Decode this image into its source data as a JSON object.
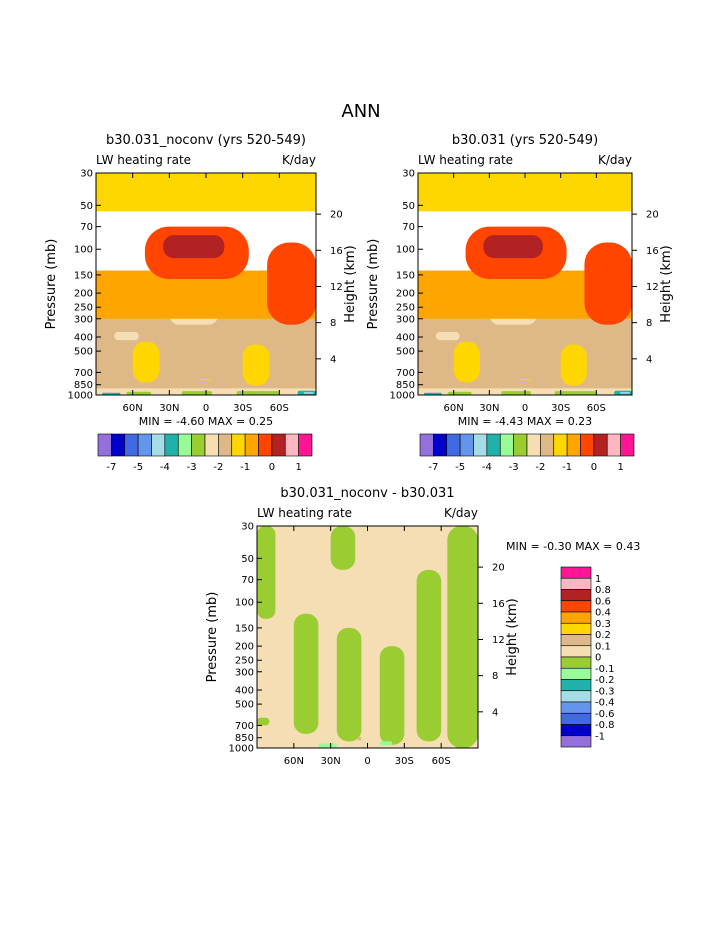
{
  "page_title": "ANN",
  "palette": {
    "main": [
      "#9370db",
      "#0000cd",
      "#4169e1",
      "#6495ed",
      "#a6dce6",
      "#20b2aa",
      "#98fb98",
      "#9acd32",
      "#f5deb3",
      "#deb887",
      "#ffd700",
      "#ffa500",
      "#ff4500",
      "#b22222",
      "#ffb6c1",
      "#ff1493"
    ],
    "diff": [
      "#9370db",
      "#0000cd",
      "#4169e1",
      "#6495ed",
      "#a6dce6",
      "#20b2aa",
      "#98fb98",
      "#9acd32",
      "#f5deb3",
      "#deb887",
      "#ffd700",
      "#ffa500",
      "#ff4500",
      "#b22222",
      "#ffb6c1",
      "#ff1493"
    ]
  },
  "chart_data": [
    {
      "type": "heatmap",
      "title": "b30.031_noconv (yrs 520-549)",
      "subtitle_left": "LW heating rate",
      "subtitle_right": "K/day",
      "ylabel": "Pressure (mb)",
      "ylabel_right": "Height (km)",
      "xlabel": "",
      "x_ticks": [
        "60N",
        "30N",
        "0",
        "30S",
        "60S"
      ],
      "x_values": [
        60,
        30,
        0,
        -30,
        -60
      ],
      "xlim": [
        90,
        -90
      ],
      "y_ticks": [
        "1000",
        "850",
        "700",
        "500",
        "400",
        "300",
        "250",
        "200",
        "150",
        "100",
        "70",
        "50",
        "30"
      ],
      "y_values": [
        1000,
        850,
        700,
        500,
        400,
        300,
        250,
        200,
        150,
        100,
        70,
        50,
        30
      ],
      "ylim": [
        1000,
        30
      ],
      "y_scale": "log",
      "height_ticks": [
        "4",
        "8",
        "12",
        "16",
        "20"
      ],
      "height_values": [
        4,
        8,
        12,
        16,
        20
      ],
      "min_label": "MIN =",
      "min_value": "-4.60",
      "max_label": "MAX =",
      "max_value": "0.25",
      "colorbar_orientation": "horizontal",
      "colorbar_labels": [
        "-7",
        "-5",
        "-4",
        "-3",
        "-2",
        "-1",
        "0",
        "1"
      ],
      "colorbar_levels": [
        -7,
        -6,
        -5,
        -4.5,
        -4,
        -3.5,
        -3,
        -2.5,
        -2,
        -1.5,
        -1,
        -0.5,
        0,
        0.5,
        1
      ],
      "fields": [
        {
          "level": 9,
          "lat": [
            -90,
            90
          ],
          "p": [
            950,
            260
          ]
        },
        {
          "level": 8,
          "lat": [
            30,
            -10
          ],
          "p": [
            330,
            235
          ]
        },
        {
          "level": 8,
          "lat": [
            75,
            55
          ],
          "p": [
            420,
            370
          ]
        },
        {
          "level": 10,
          "lat": [
            60,
            38
          ],
          "p": [
            820,
            430
          ]
        },
        {
          "level": 10,
          "lat": [
            -30,
            -52
          ],
          "p": [
            860,
            450
          ]
        },
        {
          "level": 10,
          "lat": [
            5,
            -5
          ],
          "p": [
            790,
            780
          ]
        },
        {
          "level": 8,
          "lat": [
            90,
            -90
          ],
          "p": [
            1000,
            900
          ]
        },
        {
          "level": 7,
          "lat": [
            65,
            45
          ],
          "p": [
            1000,
            950
          ]
        },
        {
          "level": 7,
          "lat": [
            20,
            -5
          ],
          "p": [
            1000,
            940
          ]
        },
        {
          "level": 7,
          "lat": [
            -25,
            -60
          ],
          "p": [
            1000,
            940
          ]
        },
        {
          "level": 5,
          "lat": [
            85,
            70
          ],
          "p": [
            1000,
            965
          ]
        },
        {
          "level": 5,
          "lat": [
            -75,
            -90
          ],
          "p": [
            1000,
            935
          ]
        },
        {
          "level": 4,
          "lat": [
            -80,
            -88
          ],
          "p": [
            980,
            955
          ]
        },
        {
          "level": 11,
          "lat": [
            90,
            -90
          ],
          "p": [
            300,
            140
          ]
        },
        {
          "level": 12,
          "lat": [
            -50,
            -90
          ],
          "p": [
            330,
            90
          ]
        },
        {
          "level": 12,
          "lat": [
            50,
            -35
          ],
          "p": [
            160,
            70
          ]
        },
        {
          "level": 13,
          "lat": [
            35,
            -15
          ],
          "p": [
            115,
            80
          ]
        },
        {
          "level": 10,
          "lat": [
            90,
            -90
          ],
          "p": [
            55,
            30
          ]
        }
      ]
    },
    {
      "type": "heatmap",
      "title": "b30.031 (yrs 520-549)",
      "subtitle_left": "LW heating rate",
      "subtitle_right": "K/day",
      "ylabel": "Pressure (mb)",
      "ylabel_right": "Height (km)",
      "xlabel": "",
      "x_ticks": [
        "60N",
        "30N",
        "0",
        "30S",
        "60S"
      ],
      "x_values": [
        60,
        30,
        0,
        -30,
        -60
      ],
      "xlim": [
        90,
        -90
      ],
      "y_ticks": [
        "1000",
        "850",
        "700",
        "500",
        "400",
        "300",
        "250",
        "200",
        "150",
        "100",
        "70",
        "50",
        "30"
      ],
      "y_values": [
        1000,
        850,
        700,
        500,
        400,
        300,
        250,
        200,
        150,
        100,
        70,
        50,
        30
      ],
      "ylim": [
        1000,
        30
      ],
      "y_scale": "log",
      "height_ticks": [
        "4",
        "8",
        "12",
        "16",
        "20"
      ],
      "height_values": [
        4,
        8,
        12,
        16,
        20
      ],
      "min_label": "MIN =",
      "min_value": "-4.43",
      "max_label": "MAX =",
      "max_value": "0.23",
      "colorbar_orientation": "horizontal",
      "colorbar_labels": [
        "-7",
        "-5",
        "-4",
        "-3",
        "-2",
        "-1",
        "0",
        "1"
      ],
      "colorbar_levels": [
        -7,
        -6,
        -5,
        -4.5,
        -4,
        -3.5,
        -3,
        -2.5,
        -2,
        -1.5,
        -1,
        -0.5,
        0,
        0.5,
        1
      ],
      "fields": [
        {
          "level": 9,
          "lat": [
            -90,
            90
          ],
          "p": [
            950,
            260
          ]
        },
        {
          "level": 8,
          "lat": [
            30,
            -10
          ],
          "p": [
            330,
            235
          ]
        },
        {
          "level": 8,
          "lat": [
            75,
            55
          ],
          "p": [
            420,
            370
          ]
        },
        {
          "level": 10,
          "lat": [
            60,
            38
          ],
          "p": [
            820,
            430
          ]
        },
        {
          "level": 10,
          "lat": [
            -30,
            -52
          ],
          "p": [
            860,
            450
          ]
        },
        {
          "level": 10,
          "lat": [
            5,
            -5
          ],
          "p": [
            790,
            780
          ]
        },
        {
          "level": 8,
          "lat": [
            90,
            -90
          ],
          "p": [
            1000,
            900
          ]
        },
        {
          "level": 7,
          "lat": [
            65,
            45
          ],
          "p": [
            1000,
            950
          ]
        },
        {
          "level": 7,
          "lat": [
            20,
            -5
          ],
          "p": [
            1000,
            940
          ]
        },
        {
          "level": 7,
          "lat": [
            -25,
            -60
          ],
          "p": [
            1000,
            940
          ]
        },
        {
          "level": 5,
          "lat": [
            85,
            70
          ],
          "p": [
            1000,
            965
          ]
        },
        {
          "level": 5,
          "lat": [
            -75,
            -90
          ],
          "p": [
            1000,
            935
          ]
        },
        {
          "level": 4,
          "lat": [
            -80,
            -88
          ],
          "p": [
            980,
            955
          ]
        },
        {
          "level": 11,
          "lat": [
            90,
            -90
          ],
          "p": [
            300,
            140
          ]
        },
        {
          "level": 12,
          "lat": [
            -50,
            -90
          ],
          "p": [
            330,
            90
          ]
        },
        {
          "level": 12,
          "lat": [
            50,
            -35
          ],
          "p": [
            160,
            70
          ]
        },
        {
          "level": 13,
          "lat": [
            35,
            -15
          ],
          "p": [
            115,
            80
          ]
        },
        {
          "level": 10,
          "lat": [
            90,
            -90
          ],
          "p": [
            55,
            30
          ]
        }
      ]
    },
    {
      "type": "heatmap",
      "title": "b30.031_noconv - b30.031",
      "subtitle_left": "LW heating rate",
      "subtitle_right": "K/day",
      "ylabel": "Pressure (mb)",
      "ylabel_right": "Height (km)",
      "xlabel": "",
      "x_ticks": [
        "60N",
        "30N",
        "0",
        "30S",
        "60S"
      ],
      "x_values": [
        60,
        30,
        0,
        -30,
        -60
      ],
      "xlim": [
        90,
        -90
      ],
      "y_ticks": [
        "1000",
        "850",
        "700",
        "500",
        "400",
        "300",
        "250",
        "200",
        "150",
        "100",
        "70",
        "50",
        "30"
      ],
      "y_values": [
        1000,
        850,
        700,
        500,
        400,
        300,
        250,
        200,
        150,
        100,
        70,
        50,
        30
      ],
      "ylim": [
        1000,
        30
      ],
      "y_scale": "log",
      "height_ticks": [
        "4",
        "8",
        "12",
        "16",
        "20"
      ],
      "height_values": [
        4,
        8,
        12,
        16,
        20
      ],
      "min_label": "MIN =",
      "min_value": "-0.30",
      "max_label": "MAX =",
      "max_value": "0.43",
      "colorbar_orientation": "vertical",
      "colorbar_labels": [
        "1",
        "0.8",
        "0.6",
        "0.4",
        "0.3",
        "0.2",
        "0.1",
        "0",
        "-0.1",
        "-0.2",
        "-0.3",
        "-0.4",
        "-0.6",
        "-0.8",
        "-1"
      ],
      "colorbar_levels": [
        -1,
        -0.8,
        -0.6,
        -0.4,
        -0.3,
        -0.2,
        -0.1,
        0,
        0.1,
        0.2,
        0.3,
        0.4,
        0.6,
        0.8,
        1
      ],
      "fields": [
        {
          "level": 8,
          "lat": [
            90,
            -90
          ],
          "p": [
            1000,
            30
          ]
        },
        {
          "level": 7,
          "lat": [
            60,
            40
          ],
          "p": [
            800,
            120
          ]
        },
        {
          "level": 7,
          "lat": [
            25,
            5
          ],
          "p": [
            900,
            150
          ]
        },
        {
          "level": 7,
          "lat": [
            -10,
            -30
          ],
          "p": [
            950,
            200
          ]
        },
        {
          "level": 7,
          "lat": [
            -40,
            -60
          ],
          "p": [
            900,
            60
          ]
        },
        {
          "level": 7,
          "lat": [
            -65,
            -90
          ],
          "p": [
            1000,
            30
          ]
        },
        {
          "level": 7,
          "lat": [
            90,
            75
          ],
          "p": [
            130,
            30
          ]
        },
        {
          "level": 7,
          "lat": [
            30,
            10
          ],
          "p": [
            60,
            30
          ]
        },
        {
          "level": 7,
          "lat": [
            90,
            80
          ],
          "p": [
            700,
            620
          ]
        },
        {
          "level": 6,
          "lat": [
            40,
            25
          ],
          "p": [
            1000,
            930
          ]
        },
        {
          "level": 6,
          "lat": [
            -10,
            -20
          ],
          "p": [
            960,
            900
          ]
        },
        {
          "level": 9,
          "lat": [
            8,
            5
          ],
          "p": [
            890,
            840
          ]
        }
      ]
    }
  ]
}
